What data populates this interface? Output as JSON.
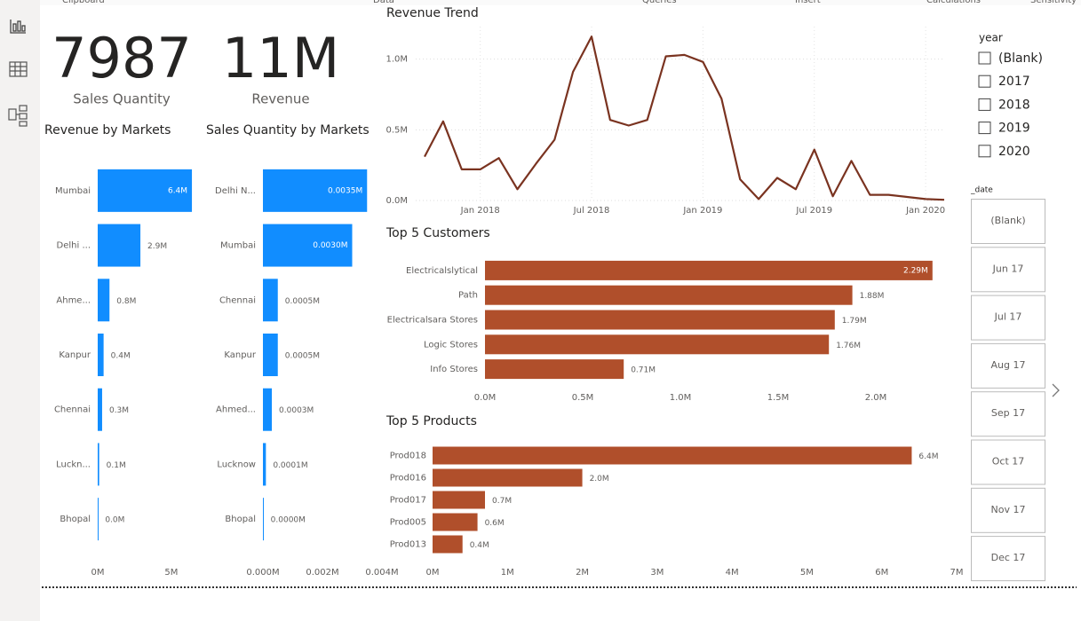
{
  "ribbon_groups": [
    "Clipboard",
    "Data",
    "Queries",
    "Insert",
    "Calculations",
    "Sensitivity"
  ],
  "cards": [
    {
      "value": 7987,
      "label": "Sales Quantity"
    },
    {
      "value": 11000000,
      "value_label": "11M",
      "label": "Revenue"
    }
  ],
  "chart_data": [
    {
      "type": "hbar",
      "title": "Revenue by Markets",
      "categories": [
        "Mumbai",
        "Delhi ...",
        "Ahme...",
        "Kanpur",
        "Chennai",
        "Luckn...",
        "Bhopal"
      ],
      "values": [
        6400000,
        2900000,
        800000,
        400000,
        300000,
        100000,
        20000
      ],
      "value_labels": [
        "6.4M",
        "2.9M",
        "0.8M",
        "0.4M",
        "0.3M",
        "0.1M",
        "0.0M"
      ],
      "color": "#118dff",
      "xlim": [
        0,
        7000000
      ],
      "xticks": [
        {
          "value": 0,
          "label": "0M"
        },
        {
          "value": 5000000,
          "label": "5M"
        }
      ],
      "grid": false
    },
    {
      "type": "hbar",
      "title": "Sales Quantity by Markets",
      "categories": [
        "Delhi N...",
        "Mumbai",
        "Chennai",
        "Kanpur",
        "Ahmed...",
        "Lucknow",
        "Bhopal"
      ],
      "values": [
        3500,
        3000,
        500,
        500,
        300,
        100,
        20
      ],
      "value_labels": [
        "0.0035M",
        "0.0030M",
        "0.0005M",
        "0.0005M",
        "0.0003M",
        "0.0001M",
        "0.0000M"
      ],
      "color": "#118dff",
      "xlim": [
        0,
        4000
      ],
      "xticks": [
        {
          "value": 0,
          "label": "0.000M"
        },
        {
          "value": 2000,
          "label": "0.002M"
        },
        {
          "value": 4000,
          "label": "0.004M"
        }
      ],
      "grid": false
    },
    {
      "type": "line",
      "title": "Revenue Trend",
      "x": [
        "2017-10",
        "2017-11",
        "2017-12",
        "2018-01",
        "2018-02",
        "2018-03",
        "2018-04",
        "2018-05",
        "2018-06",
        "2018-07",
        "2018-08",
        "2018-09",
        "2018-10",
        "2018-11",
        "2018-12",
        "2019-01",
        "2019-02",
        "2019-03",
        "2019-04",
        "2019-05",
        "2019-06",
        "2019-07",
        "2019-08",
        "2019-09",
        "2019-10",
        "2019-11",
        "2019-12",
        "2020-01",
        "2020-02"
      ],
      "values": [
        310000,
        560000,
        220000,
        220000,
        300000,
        80000,
        260000,
        430000,
        910000,
        1160000,
        570000,
        530000,
        570000,
        1020000,
        1030000,
        980000,
        720000,
        150000,
        10000,
        160000,
        80000,
        360000,
        30000,
        280000,
        40000,
        40000,
        25000,
        10000,
        5000
      ],
      "color": "#7a3320",
      "ylim": [
        0,
        1230000
      ],
      "yticks": [
        {
          "value": 0,
          "label": "0.0M"
        },
        {
          "value": 500000,
          "label": "0.5M"
        },
        {
          "value": 1000000,
          "label": "1.0M"
        }
      ],
      "xticks": [
        {
          "value": "2018-01",
          "label": "Jan 2018"
        },
        {
          "value": "2018-07",
          "label": "Jul 2018"
        },
        {
          "value": "2019-01",
          "label": "Jan 2019"
        },
        {
          "value": "2019-07",
          "label": "Jul 2019"
        },
        {
          "value": "2020-01",
          "label": "Jan 2020"
        }
      ],
      "grid": true
    },
    {
      "type": "hbar",
      "title": "Top 5 Customers",
      "categories": [
        "Electricalslytical",
        "Path",
        "Electricalsara Stores",
        "Logic Stores",
        "Info Stores"
      ],
      "values": [
        2290000,
        1880000,
        1790000,
        1760000,
        710000
      ],
      "value_labels": [
        "2.29M",
        "1.88M",
        "1.79M",
        "1.76M",
        "0.71M"
      ],
      "color": "#b04f2b",
      "xlim": [
        0,
        2350000
      ],
      "xticks": [
        {
          "value": 0,
          "label": "0.0M"
        },
        {
          "value": 500000,
          "label": "0.5M"
        },
        {
          "value": 1000000,
          "label": "1.0M"
        },
        {
          "value": 1500000,
          "label": "1.5M"
        },
        {
          "value": 2000000,
          "label": "2.0M"
        }
      ],
      "grid": false
    },
    {
      "type": "hbar",
      "title": "Top 5 Products",
      "categories": [
        "Prod018",
        "Prod016",
        "Prod017",
        "Prod005",
        "Prod013"
      ],
      "values": [
        6400000,
        2000000,
        700000,
        600000,
        400000
      ],
      "value_labels": [
        "6.4M",
        "2.0M",
        "0.7M",
        "0.6M",
        "0.4M"
      ],
      "color": "#b04f2b",
      "xlim": [
        0,
        7000000
      ],
      "xticks": [
        {
          "value": 0,
          "label": "0M"
        },
        {
          "value": 1000000,
          "label": "1M"
        },
        {
          "value": 2000000,
          "label": "2M"
        },
        {
          "value": 3000000,
          "label": "3M"
        },
        {
          "value": 4000000,
          "label": "4M"
        },
        {
          "value": 5000000,
          "label": "5M"
        },
        {
          "value": 6000000,
          "label": "6M"
        },
        {
          "value": 7000000,
          "label": "7M"
        }
      ],
      "grid": false
    }
  ],
  "year_slicer": {
    "title": "year",
    "options": [
      "(Blank)",
      "2017",
      "2018",
      "2019",
      "2020"
    ]
  },
  "date_slicer": {
    "title": "_date",
    "options": [
      "(Blank)",
      "Jun 17",
      "Jul 17",
      "Aug 17",
      "Sep 17",
      "Oct 17",
      "Nov 17",
      "Dec 17"
    ]
  }
}
